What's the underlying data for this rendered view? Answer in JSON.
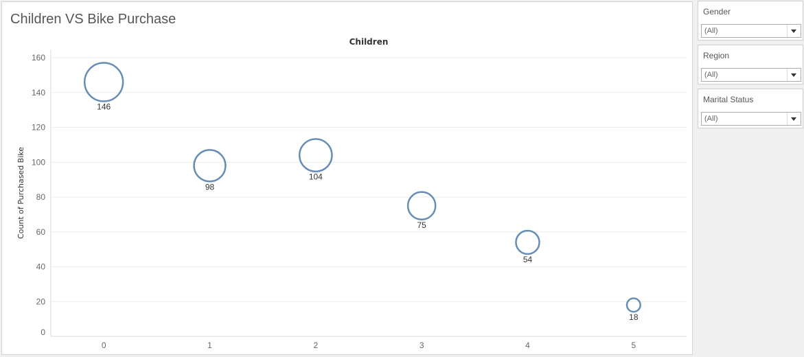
{
  "worksheet_title": "Children VS Bike Purchase",
  "chart_data": {
    "type": "scatter",
    "title": "Children",
    "xlabel": "Children",
    "ylabel": "Count of Purchased Bike",
    "x_ticks": [
      "0",
      "1",
      "2",
      "3",
      "4",
      "5"
    ],
    "y_ticks": [
      0,
      20,
      40,
      60,
      80,
      100,
      120,
      140,
      160
    ],
    "ylim": [
      0,
      160
    ],
    "grid": true,
    "marker_color": "#4e79a7",
    "points": [
      {
        "x": "0",
        "y": 146,
        "label": "146"
      },
      {
        "x": "1",
        "y": 98,
        "label": "98"
      },
      {
        "x": "2",
        "y": 104,
        "label": "104"
      },
      {
        "x": "3",
        "y": 75,
        "label": "75"
      },
      {
        "x": "4",
        "y": 54,
        "label": "54"
      },
      {
        "x": "5",
        "y": 18,
        "label": "18"
      }
    ]
  },
  "filters": [
    {
      "title": "Gender",
      "value": "(All)"
    },
    {
      "title": "Region",
      "value": "(All)"
    },
    {
      "title": "Marital Status",
      "value": "(All)"
    }
  ]
}
